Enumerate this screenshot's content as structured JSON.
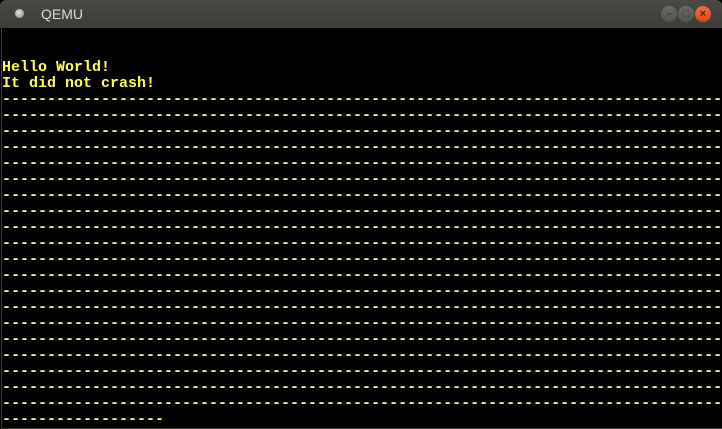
{
  "window": {
    "title": "QEMU",
    "buttons": {
      "minimize": "minimize-icon",
      "maximize": "maximize-icon",
      "close": "close-icon"
    }
  },
  "colors": {
    "text": "#ffff55",
    "background": "#000000",
    "close": "#e95420"
  },
  "screen": {
    "lines": [
      "",
      "",
      "Hello World!",
      "It did not crash!",
      "--------------------------------------------------------------------------------",
      "--------------------------------------------------------------------------------",
      "--------------------------------------------------------------------------------",
      "--------------------------------------------------------------------------------",
      "--------------------------------------------------------------------------------",
      "--------------------------------------------------------------------------------",
      "--------------------------------------------------------------------------------",
      "--------------------------------------------------------------------------------",
      "--------------------------------------------------------------------------------",
      "--------------------------------------------------------------------------------",
      "--------------------------------------------------------------------------------",
      "--------------------------------------------------------------------------------",
      "--------------------------------------------------------------------------------",
      "--------------------------------------------------------------------------------",
      "--------------------------------------------------------------------------------",
      "--------------------------------------------------------------------------------",
      "--------------------------------------------------------------------------------",
      "--------------------------------------------------------------------------------",
      "--------------------------------------------------------------------------------",
      "--------------------------------------------------------------------------------",
      "------------------"
    ]
  }
}
